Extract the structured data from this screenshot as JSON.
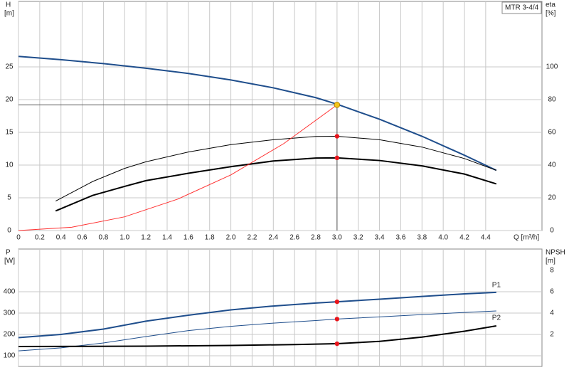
{
  "chart_data": [
    {
      "type": "line",
      "title": "MTR 3-4/4",
      "ylabel": "H",
      "yunit": "[m]",
      "y2label": "eta",
      "y2unit": "[%]",
      "xlabel": "Q [m³/h]",
      "xlim": [
        0,
        4.93
      ],
      "ylim": [
        0,
        35
      ],
      "y2lim": [
        0,
        140
      ],
      "xticks": [
        0,
        0.2,
        0.4,
        0.6,
        0.8,
        {
          "value": 1.0,
          "label": "1.0"
        },
        1.2,
        1.4,
        1.6,
        1.8,
        {
          "value": 2.0,
          "label": "2.0"
        },
        2.2,
        2.4,
        2.6,
        2.8,
        {
          "value": 3.0,
          "label": "3.0"
        },
        3.2,
        3.4,
        3.6,
        3.8,
        {
          "value": 4.0,
          "label": "4.0"
        },
        4.2,
        4.4
      ],
      "yticks": [
        0,
        5,
        10,
        15,
        20,
        25
      ],
      "y2ticks": [
        0,
        20,
        40,
        60,
        80,
        100
      ],
      "grid": true,
      "duty_point": {
        "x": 3.0,
        "y": 19.2,
        "color": "#f5c518"
      },
      "series": [
        {
          "color": "#1f4e8c",
          "linewidth": 2,
          "x": [
            0,
            0.4,
            0.8,
            1.2,
            1.6,
            2.0,
            2.4,
            2.8,
            3.0,
            3.4,
            3.8,
            4.2,
            4.5
          ],
          "values": [
            26.6,
            26.1,
            25.5,
            24.8,
            24.0,
            23.0,
            21.8,
            20.3,
            19.3,
            17.0,
            14.4,
            11.5,
            9.2
          ]
        },
        {
          "color": "#000000",
          "linewidth": 1,
          "axis": "y2",
          "highlight": true,
          "x": [
            0.35,
            0.7,
            1.0,
            1.2,
            1.6,
            2.0,
            2.4,
            2.8,
            3.0,
            3.4,
            3.8,
            4.2,
            4.5
          ],
          "values": [
            18,
            30,
            38,
            42,
            48,
            52.5,
            55.5,
            57.5,
            57.6,
            55.5,
            51,
            44,
            36.8
          ]
        },
        {
          "color": "#000000",
          "linewidth": 2,
          "axis": "y2",
          "highlight": true,
          "x": [
            0.35,
            0.7,
            1.0,
            1.2,
            1.6,
            2.0,
            2.4,
            2.8,
            3.0,
            3.4,
            3.8,
            4.2,
            4.5
          ],
          "values": [
            12,
            21.5,
            27,
            30.5,
            35,
            39,
            42.5,
            44.3,
            44.4,
            42.8,
            39.5,
            34.5,
            28.5
          ]
        },
        {
          "color": "#ff3030",
          "linewidth": 1,
          "x": [
            0,
            0.5,
            1.0,
            1.5,
            2.0,
            2.5,
            3.0
          ],
          "values": [
            0,
            0.5,
            2.1,
            4.8,
            8.5,
            13.3,
            19.2
          ]
        }
      ]
    },
    {
      "type": "line",
      "ylabel": "P",
      "yunit": "[W]",
      "y2label": "NPSH",
      "y2unit": "[m]",
      "xlim": [
        0,
        4.93
      ],
      "ylim": [
        50,
        600
      ],
      "y2lim": [
        -1,
        10
      ],
      "yticks": [
        100,
        200,
        300,
        400
      ],
      "y2ticks": [
        2,
        4,
        6,
        8
      ],
      "grid": true,
      "series": [
        {
          "name": "P1",
          "color": "#1f4e8c",
          "linewidth": 2,
          "highlight": true,
          "x": [
            0,
            0.4,
            0.8,
            1.2,
            1.6,
            2.0,
            2.4,
            2.8,
            3.0,
            3.4,
            3.8,
            4.2,
            4.5
          ],
          "values": [
            185,
            200,
            225,
            262,
            290,
            315,
            333,
            347,
            353,
            365,
            378,
            390,
            397
          ]
        },
        {
          "name": "P2",
          "color": "#1f4e8c",
          "linewidth": 1,
          "highlight": true,
          "x": [
            0,
            0.4,
            0.8,
            1.2,
            1.6,
            2.0,
            2.4,
            2.8,
            3.0,
            3.4,
            3.8,
            4.2,
            4.5
          ],
          "values": [
            123,
            137,
            160,
            190,
            218,
            238,
            253,
            265,
            272,
            282,
            293,
            303,
            310
          ]
        },
        {
          "color": "#000000",
          "linewidth": 2,
          "axis": "y2",
          "highlight": true,
          "x": [
            0,
            1.2,
            2.0,
            2.6,
            3.0,
            3.4,
            3.8,
            4.2,
            4.5
          ],
          "values": [
            0.87,
            0.9,
            0.97,
            1.05,
            1.13,
            1.35,
            1.75,
            2.3,
            2.8
          ]
        }
      ]
    }
  ]
}
